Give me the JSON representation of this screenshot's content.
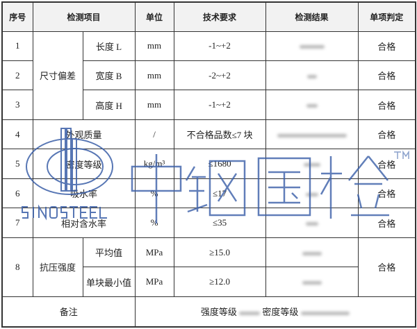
{
  "headers": [
    "序号",
    "检测项目",
    "单位",
    "技术要求",
    "检测结果",
    "单项判定"
  ],
  "group_label": "尺寸偏差",
  "group8_label": "抗压强度",
  "rows": [
    {
      "no": "1",
      "item": "长度 L",
      "unit": "mm",
      "req": "-1~+2",
      "result": "",
      "verdict": "合格"
    },
    {
      "no": "2",
      "item": "宽度 B",
      "unit": "mm",
      "req": "-2~+2",
      "result": "",
      "verdict": "合格"
    },
    {
      "no": "3",
      "item": "高度 H",
      "unit": "mm",
      "req": "-1~+2",
      "result": "",
      "verdict": "合格"
    },
    {
      "no": "4",
      "item": "外观质量",
      "unit": "/",
      "req": "不合格品数≤7 块",
      "result": "",
      "verdict": "合格"
    },
    {
      "no": "5",
      "item": "密度等级",
      "unit": "kg/m³",
      "req": "≤1680",
      "result": "",
      "verdict": "合格"
    },
    {
      "no": "6",
      "item": "吸水率",
      "unit": "%",
      "req": "≤17",
      "result": "",
      "verdict": "合格"
    },
    {
      "no": "7",
      "item": "相对含水率",
      "unit": "%",
      "req": "≤35",
      "result": "",
      "verdict": "合格"
    },
    {
      "no": "8",
      "item": "平均值",
      "unit": "MPa",
      "req": "≥15.0",
      "result": "",
      "verdict": "合格"
    },
    {
      "no": "",
      "item": "单块最小值",
      "unit": "MPa",
      "req": "≥12.0",
      "result": "",
      "verdict": ""
    }
  ],
  "note": {
    "label": "备注",
    "strength_label": "强度等级",
    "density_label": "密度等级"
  },
  "watermark": {
    "logo_text": "SINOSTEEL",
    "cn_text": "中钢国检",
    "tm": "TM",
    "color": "#3a5fa8"
  }
}
